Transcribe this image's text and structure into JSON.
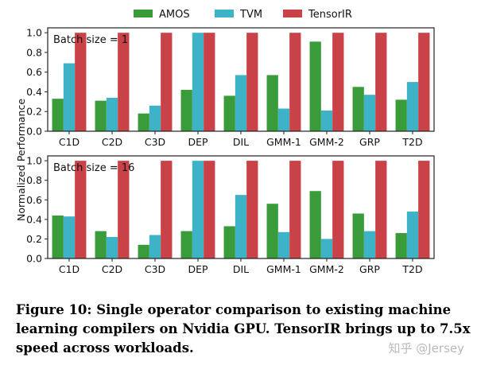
{
  "colors": {
    "AMOS": "#3a9b3a",
    "TVM": "#3eb2c6",
    "TensorIR": "#c94247"
  },
  "legend": [
    "AMOS",
    "TVM",
    "TensorIR"
  ],
  "ylabel": "Normalized Performance",
  "caption": "Figure 10: Single operator comparison to existing machine learning compilers on Nvidia GPU. TensorIR brings up to 7.5x speed across workloads.",
  "watermark": "知乎 @Jersey",
  "chart_data": [
    {
      "type": "bar",
      "title": "Batch size = 1",
      "categories": [
        "C1D",
        "C2D",
        "C3D",
        "DEP",
        "DIL",
        "GMM-1",
        "GMM-2",
        "GRP",
        "T2D"
      ],
      "series": [
        {
          "name": "AMOS",
          "values": [
            0.33,
            0.31,
            0.18,
            0.42,
            0.36,
            0.57,
            0.91,
            0.45,
            0.32
          ]
        },
        {
          "name": "TVM",
          "values": [
            0.69,
            0.34,
            0.26,
            1.0,
            0.57,
            0.23,
            0.21,
            0.37,
            0.5
          ]
        },
        {
          "name": "TensorIR",
          "values": [
            1.0,
            1.0,
            1.0,
            1.0,
            1.0,
            1.0,
            1.0,
            1.0,
            1.0
          ]
        }
      ],
      "ylim": [
        0,
        1.05
      ],
      "yticks": [
        "0.0",
        "0.2",
        "0.4",
        "0.6",
        "0.8",
        "1.0"
      ],
      "legend_position": "top"
    },
    {
      "type": "bar",
      "title": "Batch size = 16",
      "categories": [
        "C1D",
        "C2D",
        "C3D",
        "DEP",
        "DIL",
        "GMM-1",
        "GMM-2",
        "GRP",
        "T2D"
      ],
      "series": [
        {
          "name": "AMOS",
          "values": [
            0.44,
            0.28,
            0.14,
            0.28,
            0.33,
            0.56,
            0.69,
            0.46,
            0.26
          ]
        },
        {
          "name": "TVM",
          "values": [
            0.43,
            0.22,
            0.24,
            1.0,
            0.65,
            0.27,
            0.2,
            0.28,
            0.48
          ]
        },
        {
          "name": "TensorIR",
          "values": [
            1.0,
            1.0,
            1.0,
            1.0,
            1.0,
            1.0,
            1.0,
            1.0,
            1.0
          ]
        }
      ],
      "ylim": [
        0,
        1.05
      ],
      "yticks": [
        "0.0",
        "0.2",
        "0.4",
        "0.6",
        "0.8",
        "1.0"
      ],
      "legend_position": "top"
    }
  ]
}
